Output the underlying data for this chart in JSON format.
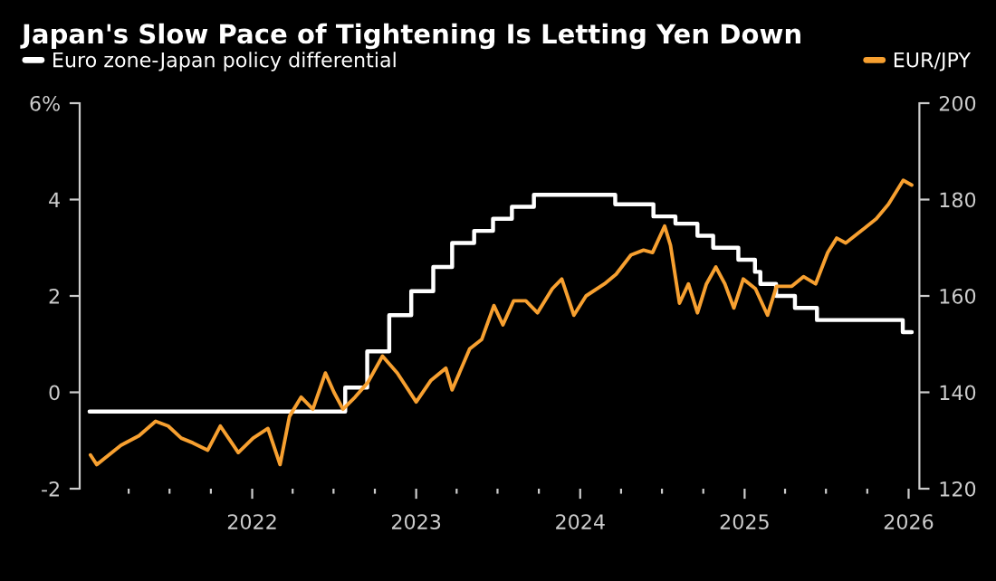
{
  "chart_data": {
    "type": "line",
    "title": "Japan's Slow Pace of Tightening Is Letting Yen Down",
    "legend": "top",
    "grid": false,
    "xlim": [
      "2020-12-13",
      "2026-01-25"
    ],
    "xticks": [
      {
        "value": "2021-04-01",
        "label": null
      },
      {
        "value": "2021-07-01",
        "label": null
      },
      {
        "value": "2021-10-01",
        "label": null
      },
      {
        "value": "2022-01-01",
        "label": "2022"
      },
      {
        "value": "2022-04-01",
        "label": null
      },
      {
        "value": "2022-07-01",
        "label": null
      },
      {
        "value": "2022-10-01",
        "label": null
      },
      {
        "value": "2023-01-01",
        "label": "2023"
      },
      {
        "value": "2023-04-01",
        "label": null
      },
      {
        "value": "2023-07-01",
        "label": null
      },
      {
        "value": "2023-10-01",
        "label": null
      },
      {
        "value": "2024-01-01",
        "label": "2024"
      },
      {
        "value": "2024-04-01",
        "label": null
      },
      {
        "value": "2024-07-01",
        "label": null
      },
      {
        "value": "2024-10-01",
        "label": null
      },
      {
        "value": "2025-01-01",
        "label": "2025"
      },
      {
        "value": "2025-04-01",
        "label": null
      },
      {
        "value": "2025-07-01",
        "label": null
      },
      {
        "value": "2025-10-01",
        "label": null
      },
      {
        "value": "2026-01-01",
        "label": "2026"
      }
    ],
    "ylim": [
      -2,
      6
    ],
    "yticks": [
      -2,
      0,
      2,
      4,
      {
        "value": 6,
        "label": "6%"
      }
    ],
    "y2lim": [
      120,
      200
    ],
    "y2ticks": [
      120,
      140,
      160,
      180,
      200
    ],
    "series": [
      {
        "name": "Euro zone-Japan policy differential",
        "type": "step",
        "color": "#ffffff",
        "x": [
          "2021-01-04",
          "2022-07-27",
          "2022-09-14",
          "2022-11-02",
          "2022-12-21",
          "2023-02-08",
          "2023-03-22",
          "2023-05-10",
          "2023-06-21",
          "2023-08-02",
          "2023-09-20",
          "2024-03-19",
          "2024-06-12",
          "2024-07-31",
          "2024-09-18",
          "2024-10-23",
          "2024-12-18",
          "2025-01-24",
          "2025-02-05",
          "2025-03-12",
          "2025-04-23",
          "2025-06-11",
          "2025-12-19",
          "2026-01-08"
        ],
        "values": [
          -0.4,
          0.1,
          0.85,
          1.6,
          2.1,
          2.6,
          3.1,
          3.35,
          3.6,
          3.85,
          4.1,
          3.9,
          3.65,
          3.5,
          3.25,
          3.0,
          2.75,
          2.5,
          2.25,
          2.0,
          1.75,
          1.5,
          1.25,
          1.25
        ]
      },
      {
        "name": "EUR/JPY",
        "axis": "y2",
        "color": "#f7a030",
        "x": [
          "2021-01-06",
          "2021-01-20",
          "2021-03-15",
          "2021-04-24",
          "2021-05-31",
          "2021-06-28",
          "2021-07-27",
          "2021-08-22",
          "2021-09-24",
          "2021-10-22",
          "2021-12-01",
          "2022-01-03",
          "2022-02-05",
          "2022-03-04",
          "2022-03-25",
          "2022-04-20",
          "2022-05-16",
          "2022-06-13",
          "2022-07-02",
          "2022-07-22",
          "2022-08-18",
          "2022-09-15",
          "2022-10-18",
          "2022-11-20",
          "2023-01-01",
          "2023-02-03",
          "2023-03-08",
          "2023-03-22",
          "2023-04-30",
          "2023-05-27",
          "2023-06-23",
          "2023-07-13",
          "2023-08-06",
          "2023-09-02",
          "2023-09-28",
          "2023-10-31",
          "2023-11-21",
          "2023-12-18",
          "2024-01-14",
          "2024-02-24",
          "2024-03-21",
          "2024-04-23",
          "2024-05-21",
          "2024-06-10",
          "2024-07-07",
          "2024-07-20",
          "2024-08-09",
          "2024-08-29",
          "2024-09-18",
          "2024-10-08",
          "2024-10-29",
          "2024-11-18",
          "2024-12-08",
          "2024-12-29",
          "2025-01-25",
          "2025-02-21",
          "2025-03-13",
          "2025-04-16",
          "2025-05-12",
          "2025-06-08",
          "2025-07-05",
          "2025-07-25",
          "2025-08-14",
          "2025-09-24",
          "2025-10-21",
          "2025-11-17",
          "2025-12-20",
          "2026-01-08"
        ],
        "values": [
          127,
          125,
          129,
          131,
          134,
          133,
          130.5,
          129.5,
          128,
          133,
          127.5,
          130.5,
          132.5,
          125,
          135,
          139,
          136.5,
          144,
          140,
          136.5,
          139,
          142,
          147.5,
          144,
          138,
          142.5,
          145,
          140.5,
          149,
          151,
          158,
          154,
          159,
          159,
          156.5,
          161.5,
          163.5,
          156,
          160,
          162.5,
          164.5,
          168.5,
          169.5,
          169,
          174.5,
          170.5,
          158.5,
          162.5,
          156.5,
          162.5,
          166,
          162.5,
          157.5,
          163.5,
          161.5,
          156,
          162,
          162,
          164,
          162.5,
          169,
          172,
          171,
          174,
          176,
          179,
          184,
          183
        ]
      }
    ]
  }
}
